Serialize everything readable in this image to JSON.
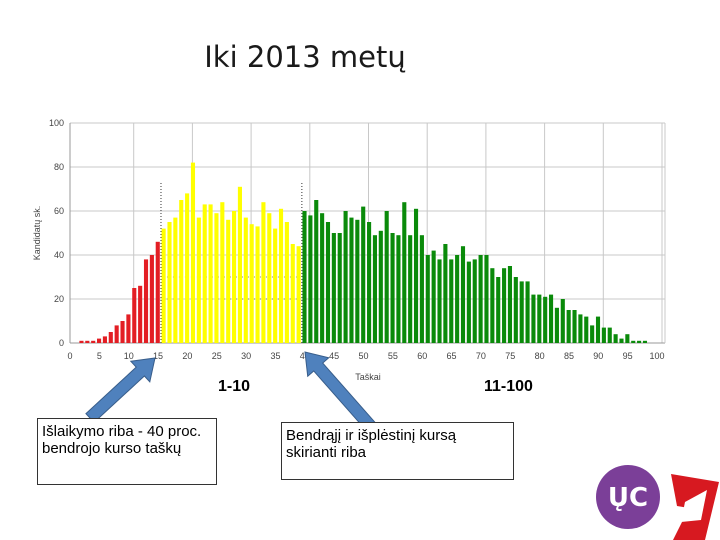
{
  "title": "Iki 2013 metų",
  "range_labels": {
    "left": "1-10",
    "right": "11-100"
  },
  "annotations": {
    "box1": "Išlaikymo riba - 40 proc. bendrojo kurso taškų",
    "box2": "Bendrąjį ir išplėstinį kursą skirianti riba"
  },
  "colors": {
    "red": "#e31e24",
    "yellow": "#ffff00",
    "green": "#0a8a0a",
    "arrow": "#4f81bd",
    "logo_purple": "#7b3f98",
    "logo_red": "#d71920"
  },
  "chart_data": {
    "type": "bar",
    "title": "Iki 2013 metų",
    "xlabel": "Taškai",
    "ylabel": "Kandidatų sk.",
    "xlim": [
      0,
      100
    ],
    "ylim": [
      0,
      100
    ],
    "xticks": [
      0,
      5,
      10,
      15,
      20,
      25,
      30,
      35,
      40,
      45,
      50,
      55,
      60,
      65,
      70,
      75,
      80,
      85,
      90,
      95,
      100
    ],
    "yticks": [
      0,
      20,
      40,
      60,
      80,
      100
    ],
    "grid": true,
    "thresholds": [
      15,
      39
    ],
    "x": [
      2,
      3,
      4,
      5,
      6,
      7,
      8,
      9,
      10,
      11,
      12,
      13,
      14,
      15,
      16,
      17,
      18,
      19,
      20,
      21,
      22,
      23,
      24,
      25,
      26,
      27,
      28,
      29,
      30,
      31,
      32,
      33,
      34,
      35,
      36,
      37,
      38,
      39,
      40,
      41,
      42,
      43,
      44,
      45,
      46,
      47,
      48,
      49,
      50,
      51,
      52,
      53,
      54,
      55,
      56,
      57,
      58,
      59,
      60,
      61,
      62,
      63,
      64,
      65,
      66,
      67,
      68,
      69,
      70,
      71,
      72,
      73,
      74,
      75,
      76,
      77,
      78,
      79,
      80,
      81,
      82,
      83,
      84,
      85,
      86,
      87,
      88,
      89,
      90,
      91,
      92,
      93,
      94,
      95,
      96,
      97,
      98
    ],
    "values": [
      1,
      1,
      1,
      2,
      3,
      5,
      8,
      10,
      13,
      25,
      26,
      38,
      40,
      46,
      52,
      55,
      57,
      65,
      68,
      82,
      57,
      63,
      63,
      59,
      64,
      56,
      60,
      71,
      57,
      54,
      53,
      64,
      59,
      52,
      61,
      55,
      45,
      44,
      60,
      58,
      65,
      59,
      55,
      50,
      50,
      60,
      57,
      56,
      62,
      55,
      49,
      51,
      60,
      50,
      49,
      64,
      49,
      61,
      49,
      40,
      42,
      38,
      45,
      38,
      40,
      44,
      37,
      38,
      40,
      40,
      34,
      30,
      34,
      35,
      30,
      28,
      28,
      22,
      22,
      21,
      22,
      16,
      20,
      15,
      15,
      13,
      12,
      8,
      12,
      7,
      7,
      4,
      2,
      4,
      1,
      1,
      1
    ],
    "color_groups": [
      {
        "from": 2,
        "to": 15,
        "color": "red"
      },
      {
        "from": 16,
        "to": 39,
        "color": "yellow"
      },
      {
        "from": 40,
        "to": 98,
        "color": "green"
      }
    ]
  }
}
